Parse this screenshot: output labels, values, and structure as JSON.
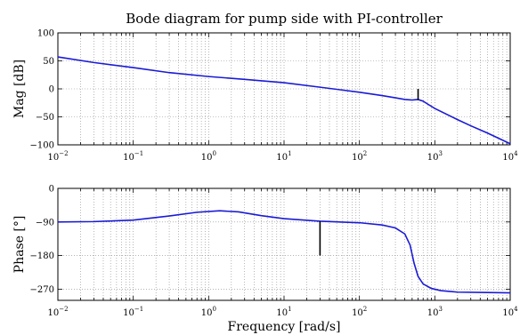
{
  "chart_data": {
    "type": "line",
    "title": "Bode diagram for pump side with PI-controller",
    "xlabel": "Frequency [rad/s]",
    "x_scale": "log",
    "xlim": [
      0.01,
      10000
    ],
    "x_tick_exponents": [
      -2,
      -1,
      0,
      1,
      2,
      3,
      4
    ],
    "x_tick_base": "10",
    "grid": true,
    "series_color": "#1a1ad6",
    "panels": [
      {
        "name": "magnitude",
        "ylabel": "Mag [dB]",
        "ylim": [
          -100,
          100
        ],
        "yticks": [
          100,
          50,
          0,
          -50,
          -100
        ],
        "x": [
          0.01,
          0.03,
          0.1,
          0.3,
          1,
          3,
          10,
          30,
          100,
          200,
          300,
          400,
          500,
          600,
          700,
          800,
          1000,
          2000,
          3000,
          5000,
          10000
        ],
        "y": [
          57,
          47,
          38,
          29,
          22,
          17,
          11,
          3,
          -6,
          -12,
          -16,
          -19,
          -20,
          -19,
          -22,
          -27,
          -35,
          -55,
          -66,
          -79,
          -98
        ],
        "marker": {
          "x": 600,
          "y_from": -20,
          "y_to": 0
        }
      },
      {
        "name": "phase",
        "ylabel": "Phase [°]",
        "ylim": [
          -300,
          0
        ],
        "yticks": [
          0,
          -90,
          -180,
          -270
        ],
        "x": [
          0.01,
          0.03,
          0.1,
          0.3,
          0.7,
          1.4,
          2.5,
          5,
          10,
          30,
          100,
          200,
          300,
          400,
          470,
          530,
          600,
          700,
          900,
          1200,
          2000,
          5000,
          10000
        ],
        "y": [
          -90,
          -89,
          -85,
          -74,
          -64,
          -60,
          -63,
          -73,
          -81,
          -88,
          -92,
          -98,
          -106,
          -122,
          -152,
          -200,
          -236,
          -256,
          -268,
          -274,
          -278,
          -279,
          -280
        ],
        "marker": {
          "x": 30,
          "y_from": -88,
          "y_to": -180
        }
      }
    ]
  }
}
